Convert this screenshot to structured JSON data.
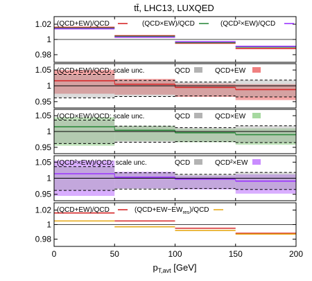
{
  "chart_data": {
    "title": "tt̄, LHC13, LUXQED",
    "type": "line",
    "x_bins": [
      0,
      50,
      100,
      150,
      200
    ],
    "xlim": [
      0,
      200
    ],
    "x_ticks": [
      "0",
      "50",
      "100",
      "150",
      "200"
    ],
    "xlabel": {
      "base": "p",
      "sub": "T,avt",
      "unit": " [GeV]"
    },
    "panels": [
      {
        "ylim": [
          0.97,
          1.03
        ],
        "y_ticks": [
          {
            "v": 1.02,
            "t": "1.02"
          },
          {
            "v": 1.0,
            "t": "1"
          },
          {
            "v": 0.98,
            "t": "0.98"
          }
        ],
        "reference_line": 1.0,
        "legend": [
          {
            "label": "(QCD+EW)/QCD",
            "color": "#d62728"
          },
          {
            "label": "(QCD×EW)/QCD",
            "color": "#2e8b3e"
          },
          {
            "label": "(QCD²×EW)/QCD",
            "color": "#9933ff"
          }
        ],
        "series": [
          {
            "name": "(QCD+EW)/QCD",
            "color": "#d62728",
            "values": [
              1.016,
              1.005,
              0.995,
              0.988
            ]
          },
          {
            "name": "(QCD×EW)/QCD",
            "color": "#2e8b3e",
            "values": [
              1.015,
              1.004,
              0.996,
              0.99
            ]
          },
          {
            "name": "(QCD²×EW)/QCD",
            "color": "#9933ff",
            "values": [
              1.014,
              1.003,
              0.997,
              0.991
            ]
          }
        ]
      },
      {
        "ylim": [
          0.93,
          1.07
        ],
        "y_ticks": [
          {
            "v": 1.05,
            "t": "1.05"
          },
          {
            "v": 1.0,
            "t": "1"
          },
          {
            "v": 0.95,
            "t": "0.95"
          }
        ],
        "legend_text": "(QCD+EW)/QCD; scale unc.",
        "legend": [
          {
            "label": "QCD",
            "color": "#b3b3b3"
          },
          {
            "label": "QCD+EW",
            "color": "#f08080"
          }
        ],
        "band_qcd": {
          "lo": [
            0.962,
            0.966,
            0.968,
            0.965
          ],
          "hi": [
            1.036,
            1.017,
            1.012,
            1.018
          ]
        },
        "band_comb": {
          "lo": [
            0.975,
            0.972,
            0.965,
            0.955
          ],
          "hi": [
            1.05,
            1.022,
            1.007,
            1.005
          ]
        },
        "central": {
          "color": "#d62728",
          "values": [
            1.016,
            1.005,
            0.995,
            0.988
          ]
        }
      },
      {
        "ylim": [
          0.93,
          1.07
        ],
        "y_ticks": [
          {
            "v": 1.05,
            "t": "1.05"
          },
          {
            "v": 1.0,
            "t": "1"
          },
          {
            "v": 0.95,
            "t": "0.95"
          }
        ],
        "legend_text": "(QCD×EW)/QCD; scale unc.",
        "legend": [
          {
            "label": "QCD",
            "color": "#b3b3b3"
          },
          {
            "label": "QCD×EW",
            "color": "#a6d9a0"
          }
        ],
        "band_qcd": {
          "lo": [
            0.962,
            0.966,
            0.968,
            0.965
          ],
          "hi": [
            1.036,
            1.017,
            1.012,
            1.018
          ]
        },
        "band_comb": {
          "lo": [
            0.955,
            0.97,
            0.966,
            0.958
          ],
          "hi": [
            1.045,
            1.018,
            1.009,
            1.01
          ]
        },
        "central": {
          "color": "#2e8b3e",
          "values": [
            1.015,
            1.004,
            0.996,
            0.99
          ]
        }
      },
      {
        "ylim": [
          0.93,
          1.07
        ],
        "y_ticks": [
          {
            "v": 1.05,
            "t": "1.05"
          },
          {
            "v": 1.0,
            "t": "1"
          },
          {
            "v": 0.95,
            "t": "0.95"
          }
        ],
        "legend_text": "(QCD²×EW)/QCD; scale unc.",
        "legend": [
          {
            "label": "QCD",
            "color": "#b3b3b3"
          },
          {
            "label": "QCD²×EW",
            "color": "#c98cff"
          }
        ],
        "band_qcd": {
          "lo": [
            0.962,
            0.966,
            0.968,
            0.965
          ],
          "hi": [
            1.036,
            1.017,
            1.012,
            1.018
          ]
        },
        "band_comb": {
          "lo": [
            0.945,
            0.968,
            0.965,
            0.952
          ],
          "hi": [
            1.055,
            1.02,
            1.008,
            1.012
          ]
        },
        "central": {
          "color": "#9933ff",
          "values": [
            1.014,
            1.003,
            0.997,
            0.991
          ]
        }
      },
      {
        "ylim": [
          0.97,
          1.03
        ],
        "y_ticks": [
          {
            "v": 1.02,
            "t": "1.02"
          },
          {
            "v": 1.0,
            "t": "1"
          },
          {
            "v": 0.98,
            "t": "0.98"
          }
        ],
        "reference_line": 1.0,
        "legend": [
          {
            "label": "(QCD+EW)/QCD",
            "color": "#d62728"
          },
          {
            "label": "(QCD+EW−EW_res)/QCD",
            "color": "#e6a817"
          }
        ],
        "series": [
          {
            "name": "(QCD+EW)/QCD",
            "color": "#d62728",
            "values": [
              1.016,
              1.005,
              0.995,
              0.988
            ]
          },
          {
            "name": "(QCD+EW−EW_res)/QCD",
            "color": "#e6a817",
            "values": [
              1.005,
              0.997,
              0.992,
              0.987
            ]
          }
        ]
      }
    ]
  }
}
